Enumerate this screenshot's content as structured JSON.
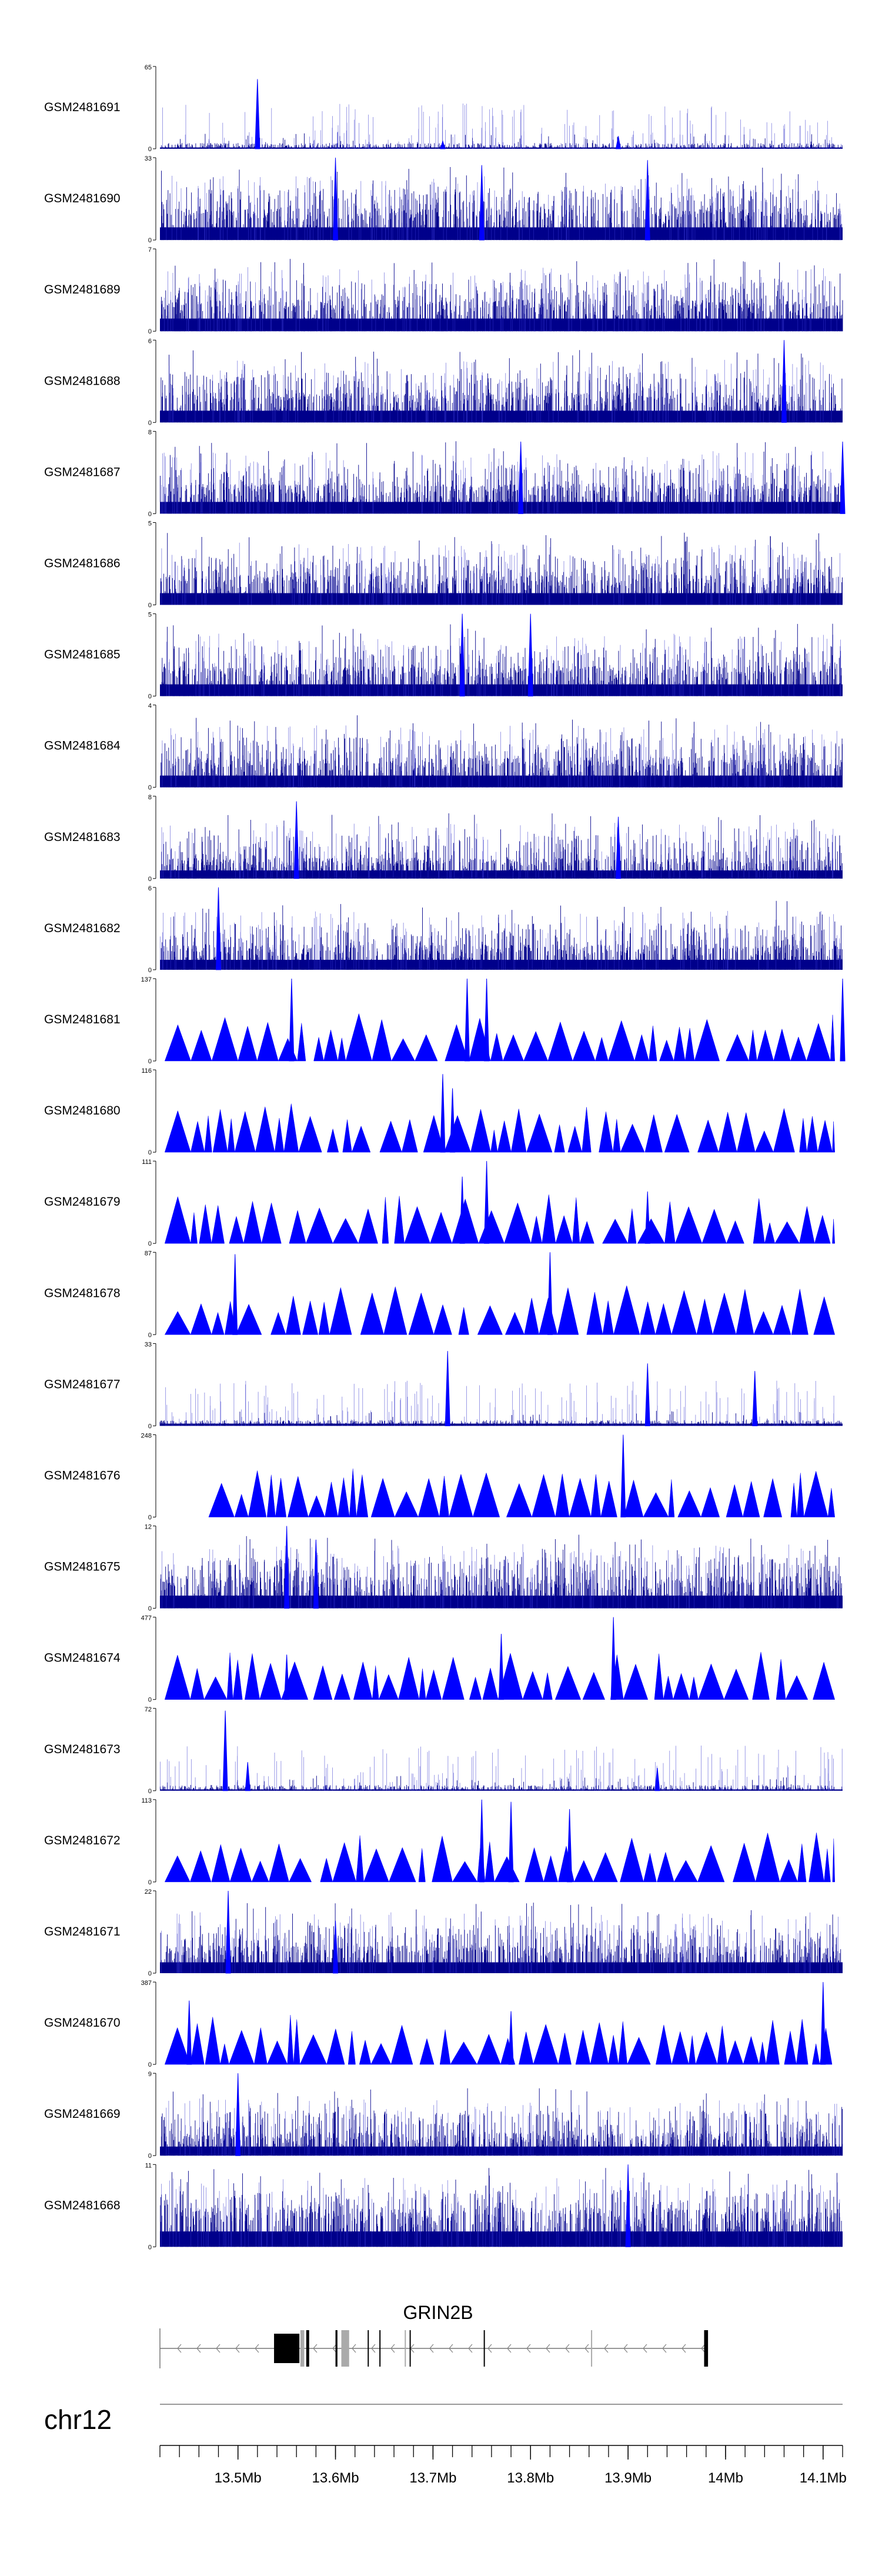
{
  "chart_data": {
    "type": "genome-browser",
    "chromosome": "chr12",
    "region_mb": [
      13.42,
      14.12
    ],
    "axis_ticks": [
      "13.5Mb",
      "13.6Mb",
      "13.7Mb",
      "13.8Mb",
      "13.9Mb",
      "14Mb",
      "14.1Mb"
    ],
    "axis_tick_values_mb": [
      13.5,
      13.6,
      13.7,
      13.8,
      13.9,
      14.0,
      14.1
    ],
    "gene": {
      "name": "GRIN2B",
      "start_mb": 13.537,
      "end_mb": 13.982,
      "strand": "-",
      "exons_mb": [
        [
          13.537,
          13.563
        ],
        [
          13.564,
          13.568
        ],
        [
          13.57,
          13.573
        ],
        [
          13.6,
          13.602
        ],
        [
          13.606,
          13.614
        ],
        [
          13.633,
          13.634
        ],
        [
          13.645,
          13.646
        ],
        [
          13.671,
          13.672
        ],
        [
          13.676,
          13.677
        ],
        [
          13.752,
          13.753
        ],
        [
          13.862,
          13.863
        ],
        [
          13.978,
          13.982
        ]
      ]
    },
    "color": "#0000ff",
    "tracks": [
      {
        "name": "GSM2481691",
        "ymax": "65",
        "ymax_value": 65,
        "style": "spike",
        "base": 0.03,
        "spikes": [
          [
            13.52,
            55
          ],
          [
            13.89,
            10
          ],
          [
            13.71,
            6
          ]
        ]
      },
      {
        "name": "GSM2481690",
        "ymax": "33",
        "ymax_value": 33,
        "style": "dense",
        "base": 0.28,
        "spikes": [
          [
            13.6,
            33
          ],
          [
            13.75,
            30
          ],
          [
            13.92,
            32
          ]
        ]
      },
      {
        "name": "GSM2481689",
        "ymax": "7",
        "ymax_value": 7,
        "style": "dense",
        "base": 0.28,
        "spikes": []
      },
      {
        "name": "GSM2481688",
        "ymax": "6",
        "ymax_value": 6,
        "style": "dense",
        "base": 0.26,
        "spikes": [
          [
            14.06,
            6
          ]
        ]
      },
      {
        "name": "GSM2481687",
        "ymax": "8",
        "ymax_value": 8,
        "style": "dense",
        "base": 0.26,
        "spikes": [
          [
            13.79,
            7
          ],
          [
            14.12,
            7
          ]
        ]
      },
      {
        "name": "GSM2481686",
        "ymax": "5",
        "ymax_value": 5,
        "style": "dense",
        "base": 0.26,
        "spikes": []
      },
      {
        "name": "GSM2481685",
        "ymax": "5",
        "ymax_value": 5,
        "style": "dense",
        "base": 0.26,
        "spikes": [
          [
            13.73,
            5
          ],
          [
            13.8,
            5
          ]
        ]
      },
      {
        "name": "GSM2481684",
        "ymax": "4",
        "ymax_value": 4,
        "style": "dense",
        "base": 0.26,
        "spikes": []
      },
      {
        "name": "GSM2481683",
        "ymax": "8",
        "ymax_value": 8,
        "style": "dense",
        "base": 0.18,
        "spikes": [
          [
            13.56,
            7.5
          ],
          [
            13.89,
            6
          ]
        ]
      },
      {
        "name": "GSM2481682",
        "ymax": "6",
        "ymax_value": 6,
        "style": "dense",
        "base": 0.22,
        "spikes": [
          [
            13.48,
            6
          ]
        ]
      },
      {
        "name": "GSM2481681",
        "ymax": "137",
        "ymax_value": 137,
        "style": "tri",
        "seed": 1811,
        "spikes": [
          [
            13.555,
            137
          ],
          [
            13.735,
            137
          ],
          [
            13.755,
            137
          ],
          [
            14.12,
            137
          ]
        ]
      },
      {
        "name": "GSM2481680",
        "ymax": "116",
        "ymax_value": 116,
        "style": "tri",
        "seed": 1802,
        "spikes": [
          [
            13.71,
            110
          ],
          [
            13.72,
            90
          ]
        ]
      },
      {
        "name": "GSM2481679",
        "ymax": "111",
        "ymax_value": 111,
        "style": "tri",
        "seed": 1793,
        "spikes": [
          [
            13.755,
            111
          ],
          [
            13.73,
            90
          ],
          [
            13.92,
            70
          ]
        ]
      },
      {
        "name": "GSM2481678",
        "ymax": "87",
        "ymax_value": 87,
        "style": "tri",
        "seed": 1784,
        "spikes": [
          [
            13.497,
            85
          ],
          [
            13.82,
            87
          ]
        ]
      },
      {
        "name": "GSM2481677",
        "ymax": "33",
        "ymax_value": 33,
        "style": "spike",
        "base": 0.05,
        "spikes": [
          [
            13.715,
            30
          ],
          [
            13.92,
            25
          ],
          [
            14.03,
            22
          ]
        ]
      },
      {
        "name": "GSM2481676",
        "ymax": "248",
        "ymax_value": 248,
        "style": "tri",
        "seed": 1766,
        "start": 13.47,
        "spikes": [
          [
            13.895,
            248
          ]
        ]
      },
      {
        "name": "GSM2481675",
        "ymax": "12",
        "ymax_value": 12,
        "style": "dense",
        "base": 0.28,
        "spikes": [
          [
            13.55,
            12
          ],
          [
            13.58,
            10
          ]
        ]
      },
      {
        "name": "GSM2481674",
        "ymax": "477",
        "ymax_value": 477,
        "style": "tri",
        "seed": 1748,
        "spikes": [
          [
            13.885,
            477
          ],
          [
            13.77,
            380
          ],
          [
            13.55,
            260
          ]
        ]
      },
      {
        "name": "GSM2481673",
        "ymax": "72",
        "ymax_value": 72,
        "style": "spike",
        "base": 0.03,
        "spikes": [
          [
            13.487,
            70
          ],
          [
            13.51,
            25
          ],
          [
            13.93,
            20
          ]
        ]
      },
      {
        "name": "GSM2481672",
        "ymax": "113",
        "ymax_value": 113,
        "style": "tri",
        "seed": 1730,
        "spikes": [
          [
            13.75,
            113
          ],
          [
            13.78,
            110
          ],
          [
            13.84,
            100
          ]
        ]
      },
      {
        "name": "GSM2481671",
        "ymax": "22",
        "ymax_value": 22,
        "style": "dense",
        "base": 0.24,
        "spikes": [
          [
            13.49,
            22
          ],
          [
            13.6,
            14
          ]
        ]
      },
      {
        "name": "GSM2481670",
        "ymax": "387",
        "ymax_value": 387,
        "style": "tri",
        "seed": 1712,
        "spikes": [
          [
            14.1,
            387
          ],
          [
            13.78,
            250
          ],
          [
            13.45,
            300
          ]
        ]
      },
      {
        "name": "GSM2481669",
        "ymax": "9",
        "ymax_value": 9,
        "style": "dense",
        "base": 0.2,
        "spikes": [
          [
            13.5,
            9
          ]
        ]
      },
      {
        "name": "GSM2481668",
        "ymax": "11",
        "ymax_value": 11,
        "style": "dense",
        "base": 0.34,
        "spikes": [
          [
            13.9,
            11
          ]
        ]
      }
    ]
  }
}
